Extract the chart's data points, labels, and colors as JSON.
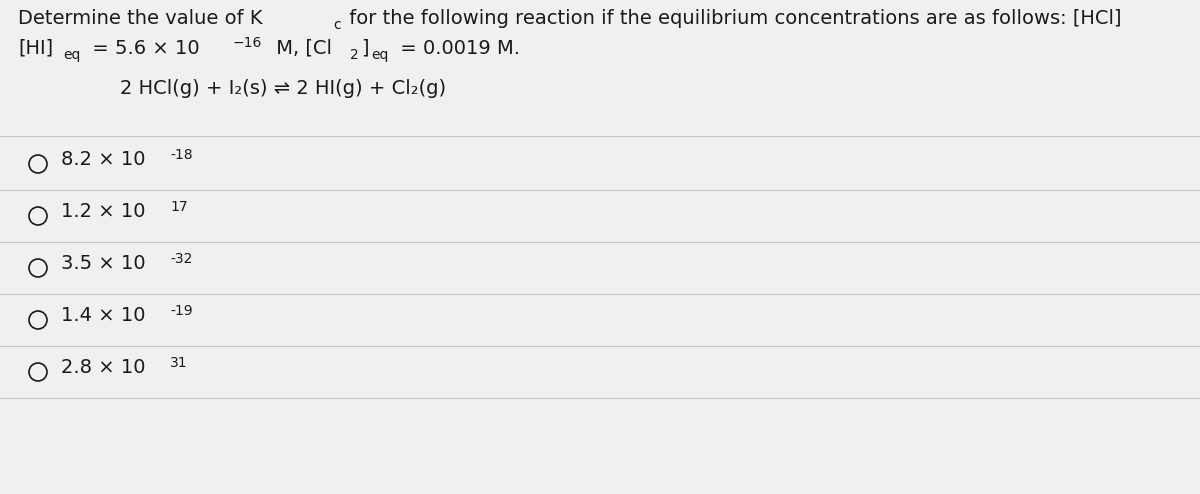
{
  "background_color": "#f0f0f0",
  "text_color": "#1a1a1a",
  "divider_color": "#c8c8c8",
  "font_size_main": 14,
  "font_size_sub": 10,
  "choices_display": [
    [
      "8.2 × 10",
      "-18"
    ],
    [
      "1.2 × 10",
      "17"
    ],
    [
      "3.5 × 10",
      "-32"
    ],
    [
      "1.4 × 10",
      "-19"
    ],
    [
      "2.8 × 10",
      "31"
    ]
  ]
}
